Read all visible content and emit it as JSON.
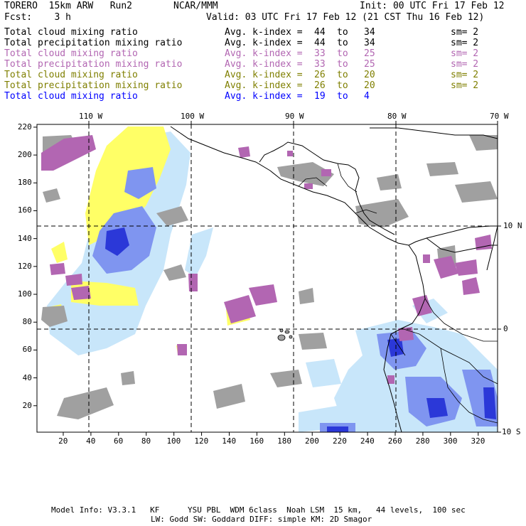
{
  "header": {
    "run_id": "TORERO  15km ARW   Run2",
    "center": "NCAR/MMM",
    "init": "Init: 00 UTC Fri 17 Feb 12",
    "fcst": "Fcst:    3 h",
    "valid": "Valid: 03 UTC Fri 17 Feb 12 (21 CST Thu 16 Feb 12)"
  },
  "legend": [
    {
      "field": "Total cloud mixing ratio",
      "kindex": "Avg. k-index =",
      "from": "44",
      "to_word": "to",
      "to": "34",
      "sm": "sm= 2",
      "color": "#000000"
    },
    {
      "field": "Total precipitation mixing ratio",
      "kindex": "Avg. k-index =",
      "from": "44",
      "to_word": "to",
      "to": "34",
      "sm": "sm= 2",
      "color": "#000000"
    },
    {
      "field": "Total cloud mixing ratio",
      "kindex": "Avg. k-index =",
      "from": "33",
      "to_word": "to",
      "to": "25",
      "sm": "sm= 2",
      "color": "#b266b2"
    },
    {
      "field": "Total precipitation mixing ratio",
      "kindex": "Avg. k-index =",
      "from": "33",
      "to_word": "to",
      "to": "25",
      "sm": "sm= 2",
      "color": "#b266b2"
    },
    {
      "field": "Total cloud mixing ratio",
      "kindex": "Avg. k-index =",
      "from": "26",
      "to_word": "to",
      "to": "20",
      "sm": "sm= 2",
      "color": "#7f7f00"
    },
    {
      "field": "Total precipitation mixing ratio",
      "kindex": "Avg. k-index =",
      "from": "26",
      "to_word": "to",
      "to": "20",
      "sm": "sm= 2",
      "color": "#7f7f00"
    },
    {
      "field": "Total cloud mixing ratio",
      "kindex": "Avg. k-index =",
      "from": "19",
      "to_word": "to",
      "to": "4",
      "sm": "",
      "color": "#0000ff"
    }
  ],
  "map": {
    "lon_labels": [
      "110 W",
      "100 W",
      "90 W",
      "80 W",
      "70 W"
    ],
    "lat_labels": [
      "10 N",
      "0",
      "10 S"
    ],
    "x_ticks": [
      "20",
      "40",
      "60",
      "80",
      "100",
      "120",
      "140",
      "160",
      "180",
      "200",
      "220",
      "240",
      "260",
      "280",
      "300",
      "320"
    ],
    "y_ticks": [
      "220",
      "200",
      "180",
      "160",
      "140",
      "120",
      "100",
      "80",
      "60",
      "40",
      "20"
    ],
    "x_range": [
      1,
      334
    ],
    "y_range": [
      1,
      222
    ],
    "colors": {
      "gray": "#a0a0a0",
      "purple": "#b266b2",
      "yellow": "#ffff66",
      "light_blue": "#c8e6fa",
      "mid_blue": "#7f95f0",
      "deep_blue": "#2b38d8"
    }
  },
  "footer": {
    "line1": "Model Info: V3.3.1   KF      YSU PBL  WDM 6class  Noah LSM  15 km,   44 levels,  100 sec",
    "line2": "LW: Godd SW: Goddard DIFF: simple KM: 2D Smagor"
  }
}
